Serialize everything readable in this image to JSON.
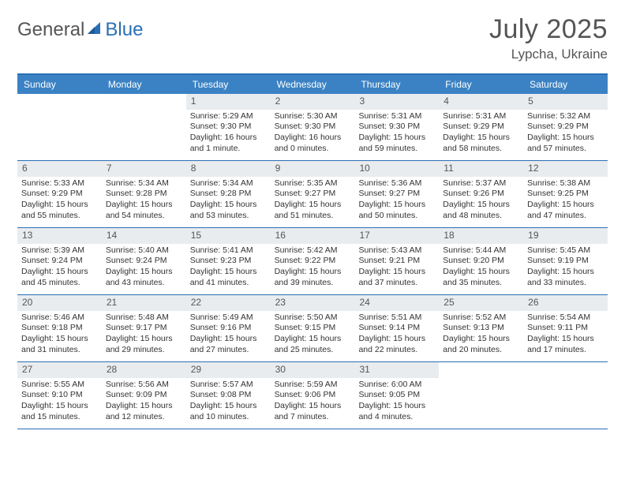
{
  "logo": {
    "part1": "General",
    "part2": "Blue"
  },
  "title": "July 2025",
  "location": "Lypcha, Ukraine",
  "colors": {
    "header_bg": "#3b82c4",
    "border": "#2a6fb5",
    "daynum_bg": "#e9ecef",
    "text": "#333333",
    "title_text": "#555555"
  },
  "fonts": {
    "title_size_pt": 26,
    "location_size_pt": 13,
    "header_size_pt": 9,
    "cell_num_size_pt": 9,
    "cell_body_size_pt": 8
  },
  "day_names": [
    "Sunday",
    "Monday",
    "Tuesday",
    "Wednesday",
    "Thursday",
    "Friday",
    "Saturday"
  ],
  "weeks": [
    [
      {
        "empty": true
      },
      {
        "empty": true
      },
      {
        "day": "1",
        "sunrise": "Sunrise: 5:29 AM",
        "sunset": "Sunset: 9:30 PM",
        "daylight": "Daylight: 16 hours and 1 minute."
      },
      {
        "day": "2",
        "sunrise": "Sunrise: 5:30 AM",
        "sunset": "Sunset: 9:30 PM",
        "daylight": "Daylight: 16 hours and 0 minutes."
      },
      {
        "day": "3",
        "sunrise": "Sunrise: 5:31 AM",
        "sunset": "Sunset: 9:30 PM",
        "daylight": "Daylight: 15 hours and 59 minutes."
      },
      {
        "day": "4",
        "sunrise": "Sunrise: 5:31 AM",
        "sunset": "Sunset: 9:29 PM",
        "daylight": "Daylight: 15 hours and 58 minutes."
      },
      {
        "day": "5",
        "sunrise": "Sunrise: 5:32 AM",
        "sunset": "Sunset: 9:29 PM",
        "daylight": "Daylight: 15 hours and 57 minutes."
      }
    ],
    [
      {
        "day": "6",
        "sunrise": "Sunrise: 5:33 AM",
        "sunset": "Sunset: 9:29 PM",
        "daylight": "Daylight: 15 hours and 55 minutes."
      },
      {
        "day": "7",
        "sunrise": "Sunrise: 5:34 AM",
        "sunset": "Sunset: 9:28 PM",
        "daylight": "Daylight: 15 hours and 54 minutes."
      },
      {
        "day": "8",
        "sunrise": "Sunrise: 5:34 AM",
        "sunset": "Sunset: 9:28 PM",
        "daylight": "Daylight: 15 hours and 53 minutes."
      },
      {
        "day": "9",
        "sunrise": "Sunrise: 5:35 AM",
        "sunset": "Sunset: 9:27 PM",
        "daylight": "Daylight: 15 hours and 51 minutes."
      },
      {
        "day": "10",
        "sunrise": "Sunrise: 5:36 AM",
        "sunset": "Sunset: 9:27 PM",
        "daylight": "Daylight: 15 hours and 50 minutes."
      },
      {
        "day": "11",
        "sunrise": "Sunrise: 5:37 AM",
        "sunset": "Sunset: 9:26 PM",
        "daylight": "Daylight: 15 hours and 48 minutes."
      },
      {
        "day": "12",
        "sunrise": "Sunrise: 5:38 AM",
        "sunset": "Sunset: 9:25 PM",
        "daylight": "Daylight: 15 hours and 47 minutes."
      }
    ],
    [
      {
        "day": "13",
        "sunrise": "Sunrise: 5:39 AM",
        "sunset": "Sunset: 9:24 PM",
        "daylight": "Daylight: 15 hours and 45 minutes."
      },
      {
        "day": "14",
        "sunrise": "Sunrise: 5:40 AM",
        "sunset": "Sunset: 9:24 PM",
        "daylight": "Daylight: 15 hours and 43 minutes."
      },
      {
        "day": "15",
        "sunrise": "Sunrise: 5:41 AM",
        "sunset": "Sunset: 9:23 PM",
        "daylight": "Daylight: 15 hours and 41 minutes."
      },
      {
        "day": "16",
        "sunrise": "Sunrise: 5:42 AM",
        "sunset": "Sunset: 9:22 PM",
        "daylight": "Daylight: 15 hours and 39 minutes."
      },
      {
        "day": "17",
        "sunrise": "Sunrise: 5:43 AM",
        "sunset": "Sunset: 9:21 PM",
        "daylight": "Daylight: 15 hours and 37 minutes."
      },
      {
        "day": "18",
        "sunrise": "Sunrise: 5:44 AM",
        "sunset": "Sunset: 9:20 PM",
        "daylight": "Daylight: 15 hours and 35 minutes."
      },
      {
        "day": "19",
        "sunrise": "Sunrise: 5:45 AM",
        "sunset": "Sunset: 9:19 PM",
        "daylight": "Daylight: 15 hours and 33 minutes."
      }
    ],
    [
      {
        "day": "20",
        "sunrise": "Sunrise: 5:46 AM",
        "sunset": "Sunset: 9:18 PM",
        "daylight": "Daylight: 15 hours and 31 minutes."
      },
      {
        "day": "21",
        "sunrise": "Sunrise: 5:48 AM",
        "sunset": "Sunset: 9:17 PM",
        "daylight": "Daylight: 15 hours and 29 minutes."
      },
      {
        "day": "22",
        "sunrise": "Sunrise: 5:49 AM",
        "sunset": "Sunset: 9:16 PM",
        "daylight": "Daylight: 15 hours and 27 minutes."
      },
      {
        "day": "23",
        "sunrise": "Sunrise: 5:50 AM",
        "sunset": "Sunset: 9:15 PM",
        "daylight": "Daylight: 15 hours and 25 minutes."
      },
      {
        "day": "24",
        "sunrise": "Sunrise: 5:51 AM",
        "sunset": "Sunset: 9:14 PM",
        "daylight": "Daylight: 15 hours and 22 minutes."
      },
      {
        "day": "25",
        "sunrise": "Sunrise: 5:52 AM",
        "sunset": "Sunset: 9:13 PM",
        "daylight": "Daylight: 15 hours and 20 minutes."
      },
      {
        "day": "26",
        "sunrise": "Sunrise: 5:54 AM",
        "sunset": "Sunset: 9:11 PM",
        "daylight": "Daylight: 15 hours and 17 minutes."
      }
    ],
    [
      {
        "day": "27",
        "sunrise": "Sunrise: 5:55 AM",
        "sunset": "Sunset: 9:10 PM",
        "daylight": "Daylight: 15 hours and 15 minutes."
      },
      {
        "day": "28",
        "sunrise": "Sunrise: 5:56 AM",
        "sunset": "Sunset: 9:09 PM",
        "daylight": "Daylight: 15 hours and 12 minutes."
      },
      {
        "day": "29",
        "sunrise": "Sunrise: 5:57 AM",
        "sunset": "Sunset: 9:08 PM",
        "daylight": "Daylight: 15 hours and 10 minutes."
      },
      {
        "day": "30",
        "sunrise": "Sunrise: 5:59 AM",
        "sunset": "Sunset: 9:06 PM",
        "daylight": "Daylight: 15 hours and 7 minutes."
      },
      {
        "day": "31",
        "sunrise": "Sunrise: 6:00 AM",
        "sunset": "Sunset: 9:05 PM",
        "daylight": "Daylight: 15 hours and 4 minutes."
      },
      {
        "empty": true
      },
      {
        "empty": true
      }
    ]
  ]
}
